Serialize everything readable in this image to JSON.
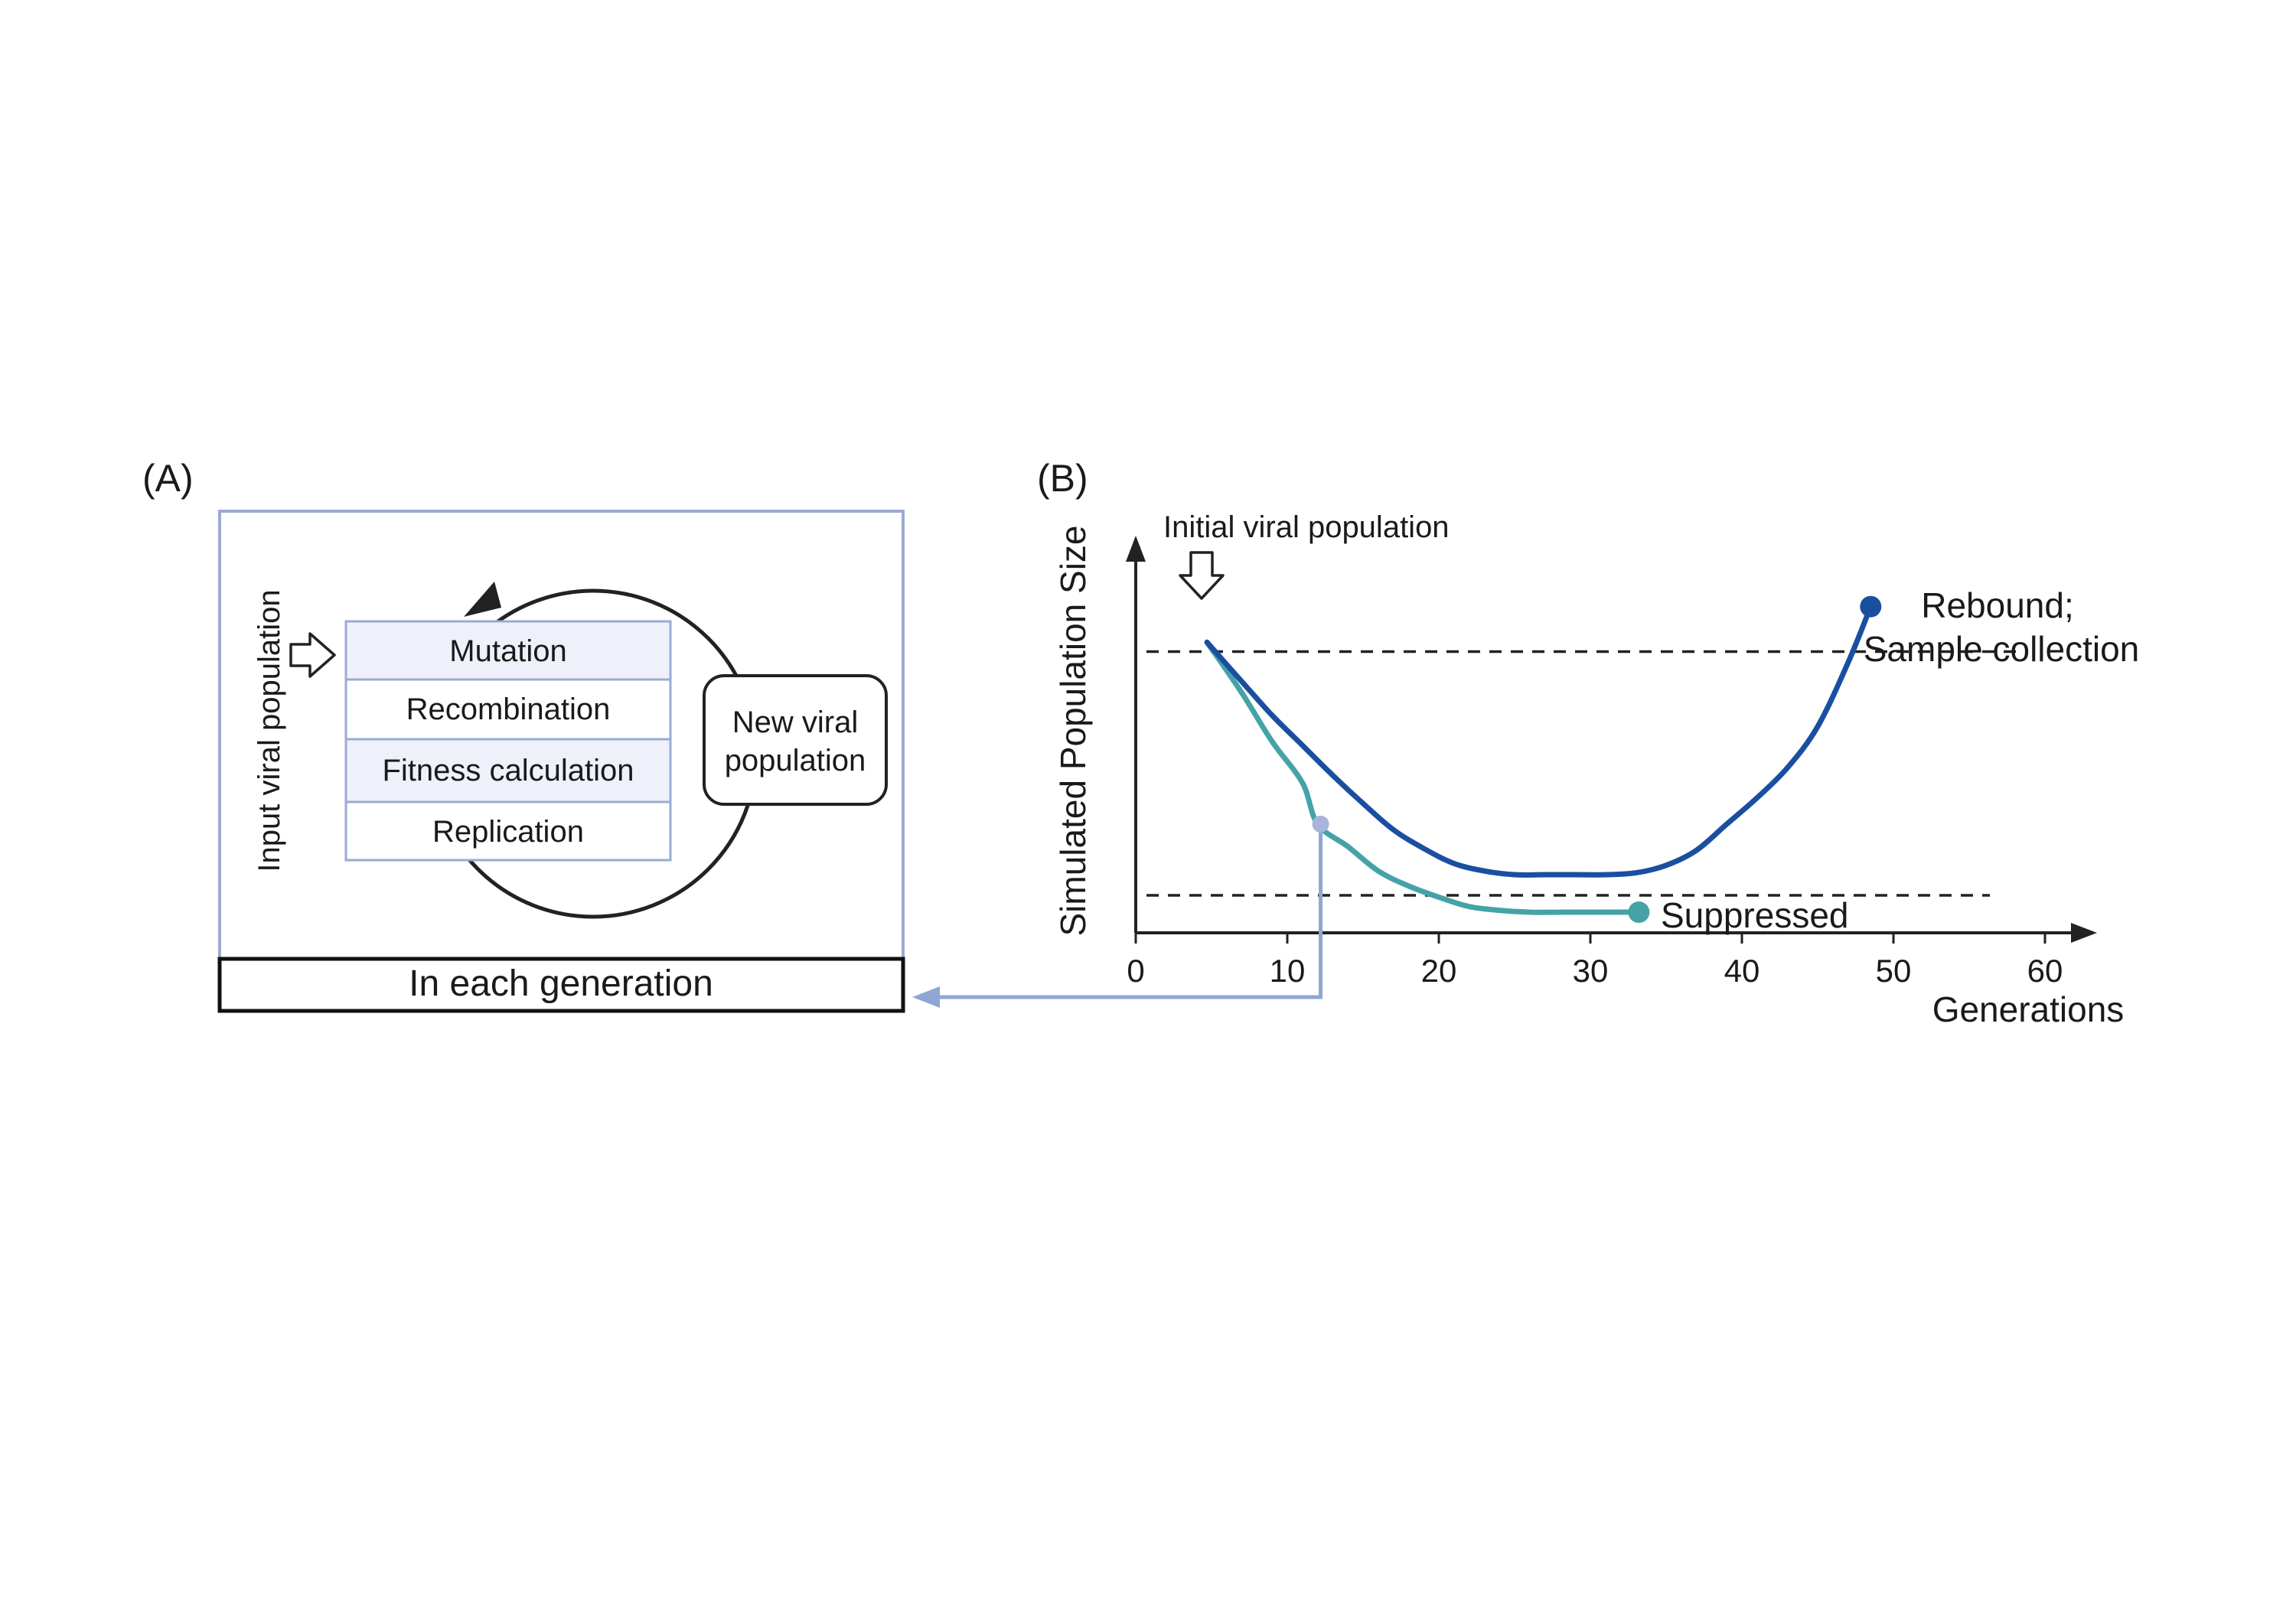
{
  "panel_a": {
    "label": "(A)",
    "input_label": "Input viral population",
    "steps": [
      "Mutation",
      "Recombination",
      "Fitness calculation",
      "Replication"
    ],
    "new_population": [
      "New viral",
      "population"
    ],
    "footer": "In each generation"
  },
  "panel_b": {
    "label": "(B)",
    "initial_label": "Initial viral population",
    "rebound_label": [
      "Rebound;",
      "Sample collection"
    ],
    "suppressed_label": "Suppressed"
  },
  "chart_data": {
    "type": "line",
    "xlabel": "Generations",
    "ylabel": "Simulated Population Size",
    "xlim": [
      0,
      63
    ],
    "x_ticks": [
      "0",
      "10",
      "20",
      "30",
      "40",
      "50",
      "60"
    ],
    "ylim": [
      0,
      100
    ],
    "grid": false,
    "series": [
      {
        "name": "Rebound; Sample collection",
        "color": "#1a4fa0",
        "x": [
          4.7,
          7,
          9,
          11,
          13,
          15,
          17,
          19,
          21,
          23,
          25,
          27,
          29,
          31,
          33,
          35,
          37,
          39,
          41,
          43,
          45,
          47,
          48.5
        ],
        "y": [
          77.5,
          67,
          58,
          50,
          42,
          34.5,
          27.5,
          22.5,
          18.5,
          16.5,
          15.5,
          15.5,
          15.5,
          15.5,
          16,
          18,
          22,
          29,
          36,
          44,
          55,
          72,
          87
        ]
      },
      {
        "name": "Suppressed",
        "color": "#45a3a8",
        "x": [
          4.7,
          7,
          9,
          11,
          12,
          14,
          16,
          18,
          20,
          22,
          24,
          26,
          28,
          30,
          32,
          33.2
        ],
        "y": [
          77.5,
          64,
          51,
          40,
          29,
          23,
          16.5,
          12.5,
          9.5,
          7,
          6,
          5.5,
          5.5,
          5.5,
          5.5,
          5.5
        ]
      }
    ],
    "thresholds": [
      {
        "y": 75,
        "style": "dashed"
      },
      {
        "y": 10,
        "style": "dashed"
      }
    ],
    "markers": [
      {
        "series": "Rebound; Sample collection",
        "x": 48.5,
        "y": 87,
        "color": "#1a4fa0"
      },
      {
        "series": "Suppressed",
        "x": 33.2,
        "y": 5.5,
        "color": "#45a3a8"
      },
      {
        "series": "Suppressed",
        "x": 12.2,
        "y": 29,
        "color": "#a8b4d8"
      }
    ],
    "link_color": "#8fa6d4"
  }
}
